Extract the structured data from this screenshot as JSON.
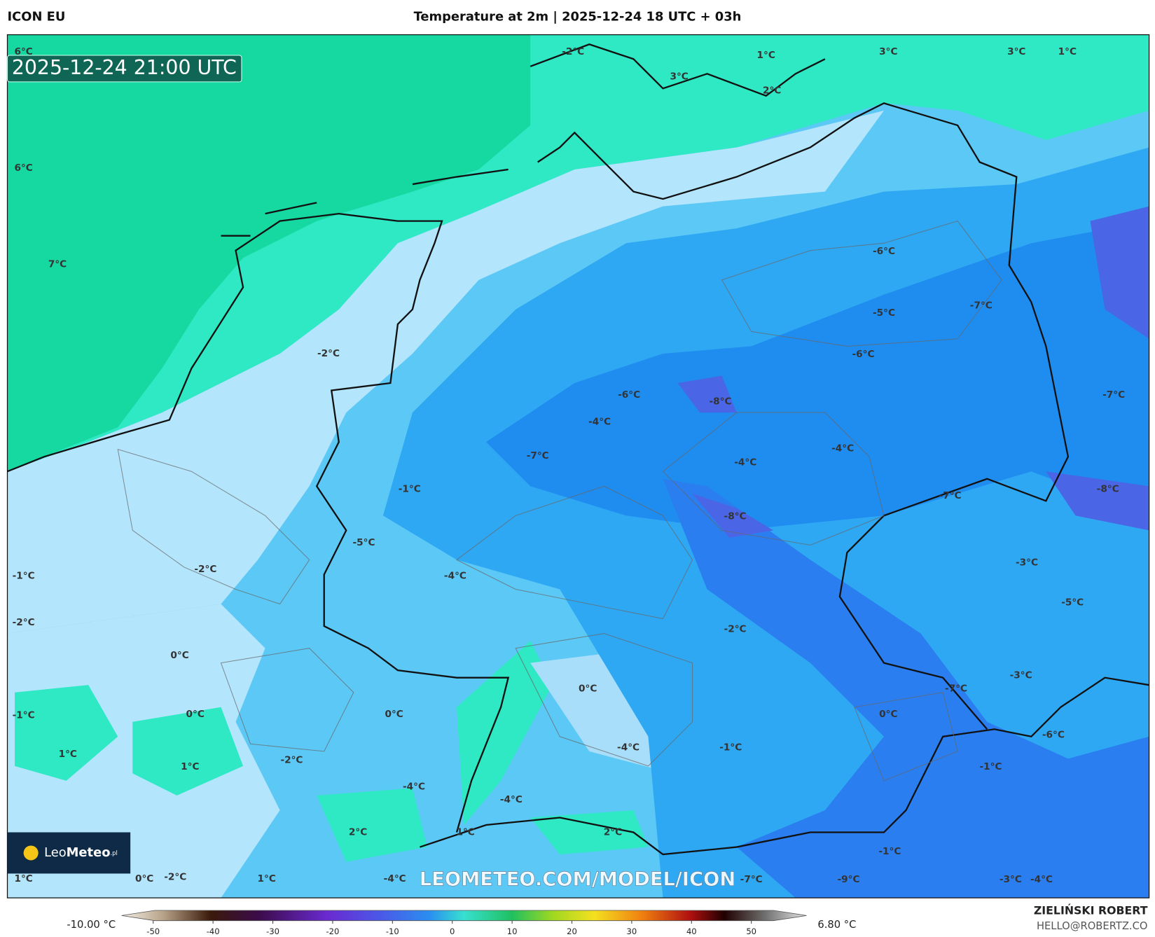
{
  "header": {
    "model": "ICON EU",
    "title": "Temperature at 2m | 2025-12-24 18 UTC + 03h"
  },
  "timestamp": "2025-12-24 21:00 UTC",
  "watermark": "LEOMETEO.COM/MODEL/ICON",
  "logo": {
    "prefix": "Leo",
    "name": "Meteo",
    "suffix": ".pl"
  },
  "map": {
    "labels": [
      "6°C",
      "6°C",
      "7°C",
      "-2°C",
      "3°C",
      "1°C",
      "2°C",
      "3°C",
      "3°C",
      "1°C",
      "-6°C",
      "-5°C",
      "-7°C",
      "-6°C",
      "-2°C",
      "-6°C",
      "-8°C",
      "-7°C",
      "-4°C",
      "-7°C",
      "-4°C",
      "-4°C",
      "-1°C",
      "-8°C",
      "-7°C",
      "-8°C",
      "-5°C",
      "-1°C",
      "-2°C",
      "-4°C",
      "-3°C",
      "-5°C",
      "-2°C",
      "-2°C",
      "0°C",
      "-3°C",
      "0°C",
      "-7°C",
      "-1°C",
      "0°C",
      "0°C",
      "0°C",
      "-6°C",
      "1°C",
      "-2°C",
      "-4°C",
      "-1°C",
      "1°C",
      "-1°C",
      "-4°C",
      "-4°C",
      "2°C",
      "1°C",
      "2°C",
      "-1°C",
      "1°C",
      "0°C",
      "-2°C",
      "1°C",
      "-4°C",
      "-7°C",
      "-9°C",
      "-3°C",
      "-4°C"
    ]
  },
  "colorbar": {
    "min_label": "-10.00 °C",
    "max_label": "6.80 °C",
    "ticks": [
      -50,
      -40,
      -30,
      -20,
      -10,
      0,
      10,
      20,
      30,
      40,
      50
    ]
  },
  "credits": {
    "author": "ZIELIŃSKI ROBERT",
    "email": "HELLO@ROBERTZ.CO"
  }
}
